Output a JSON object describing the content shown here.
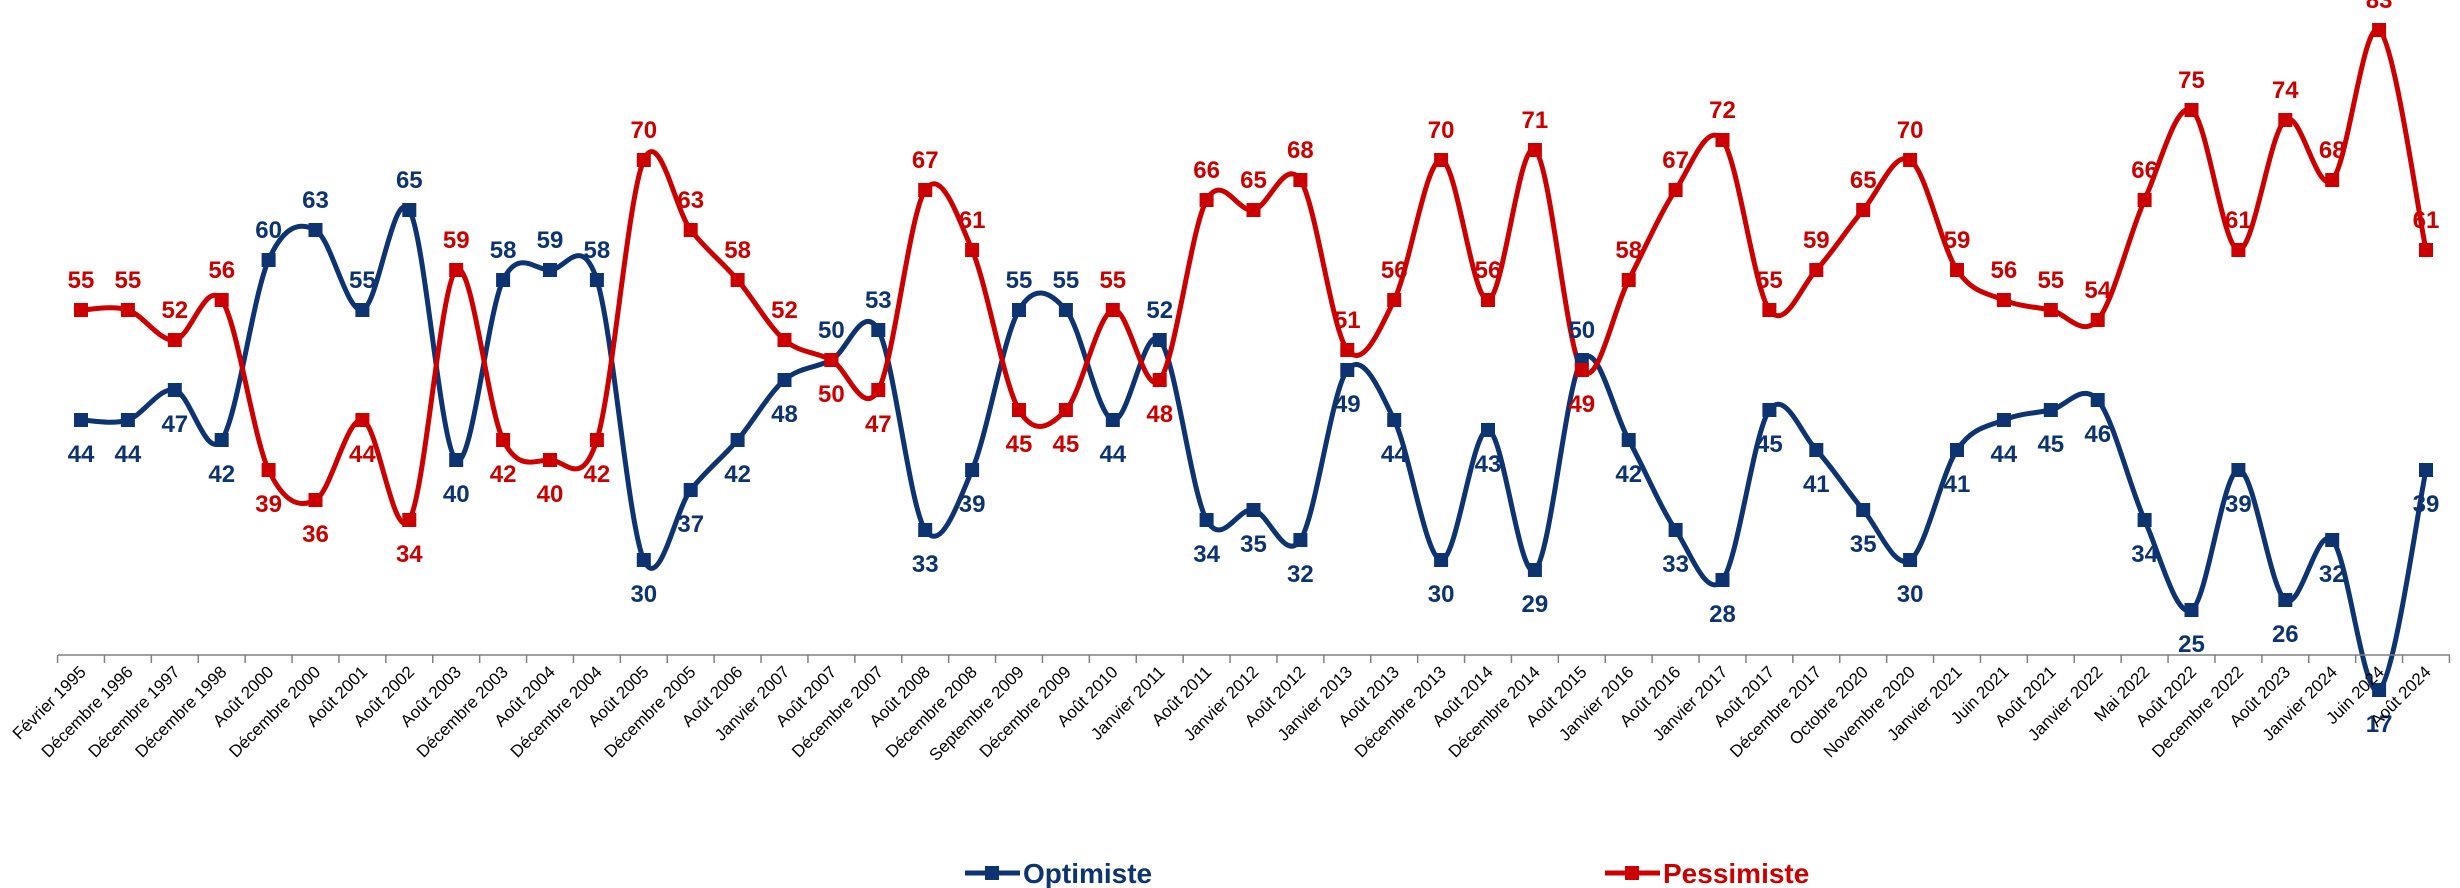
{
  "chart_data": {
    "type": "line",
    "title": "",
    "xlabel": "",
    "ylabel": "",
    "ylim": [
      10,
      90
    ],
    "grid": false,
    "legend_position": "bottom",
    "categories": [
      "Février 1995",
      "Décembre 1996",
      "Décembre 1997",
      "Décembre 1998",
      "Août 2000",
      "Décembre 2000",
      "Août 2001",
      "Août 2002",
      "Août 2003",
      "Décembre 2003",
      "Août 2004",
      "Décembre 2004",
      "Août 2005",
      "Décembre 2005",
      "Août 2006",
      "Janvier 2007",
      "Août 2007",
      "Décembre 2007",
      "Août 2008",
      "Décembre 2008",
      "Septembre 2009",
      "Décembre 2009",
      "Août 2010",
      "Janvier 2011",
      "Août 2011",
      "Janvier 2012",
      "Août 2012",
      "Janvier 2013",
      "Août 2013",
      "Décembre 2013",
      "Août 2014",
      "Décembre 2014",
      "Août 2015",
      "Janvier 2016",
      "Août 2016",
      "Janvier 2017",
      "Août 2017",
      "Décembre 2017",
      "Octobre 2020",
      "Novembre 2020",
      "Janvier 2021",
      "Juin 2021",
      "Août 2021",
      "Janvier 2022",
      "Mai 2022",
      "Août 2022",
      "Decembre 2022",
      "Août 2023",
      "Janvier 2024",
      "Juin 2024",
      "Août 2024"
    ],
    "series": [
      {
        "name": "Optimiste",
        "color": "#0d3370",
        "values": [
          44,
          44,
          47,
          42,
          60,
          63,
          55,
          65,
          40,
          58,
          59,
          58,
          30,
          37,
          42,
          48,
          50,
          53,
          33,
          39,
          55,
          55,
          44,
          52,
          34,
          35,
          32,
          49,
          44,
          30,
          43,
          29,
          50,
          42,
          33,
          28,
          45,
          41,
          35,
          30,
          41,
          44,
          45,
          46,
          34,
          25,
          39,
          26,
          32,
          17,
          39
        ]
      },
      {
        "name": "Pessimiste",
        "color": "#cc0000",
        "values": [
          55,
          55,
          52,
          56,
          39,
          36,
          44,
          34,
          59,
          42,
          40,
          42,
          70,
          63,
          58,
          52,
          50,
          47,
          67,
          61,
          45,
          45,
          55,
          48,
          66,
          65,
          68,
          51,
          56,
          70,
          56,
          71,
          49,
          58,
          67,
          72,
          55,
          59,
          65,
          70,
          59,
          56,
          55,
          54,
          66,
          75,
          61,
          74,
          68,
          83,
          61
        ]
      }
    ]
  }
}
